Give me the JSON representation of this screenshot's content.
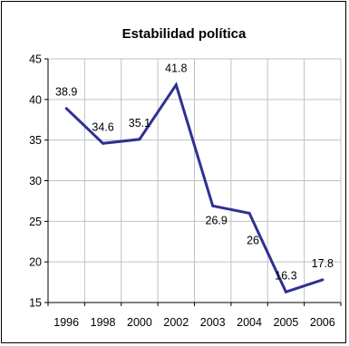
{
  "chart_data": {
    "type": "line",
    "title": "Estabilidad política",
    "xlabel": "",
    "ylabel": "",
    "categories": [
      "1996",
      "1998",
      "2000",
      "2002",
      "2003",
      "2004",
      "2005",
      "2006"
    ],
    "series": [
      {
        "values": [
          38.9,
          34.6,
          35.1,
          41.8,
          26.9,
          26,
          16.3,
          17.8
        ],
        "labels": [
          "38.9",
          "34.6",
          "35.1",
          "41.8",
          "26.9",
          "26",
          "16.3",
          "17.8"
        ]
      }
    ],
    "ylim": [
      15,
      45
    ],
    "yticks": [
      15,
      20,
      25,
      30,
      35,
      40,
      45
    ],
    "grid": true,
    "legend": "none",
    "colors": {
      "line": "#2e3192",
      "grid": "#c0c0c0",
      "axis": "#000000"
    }
  }
}
